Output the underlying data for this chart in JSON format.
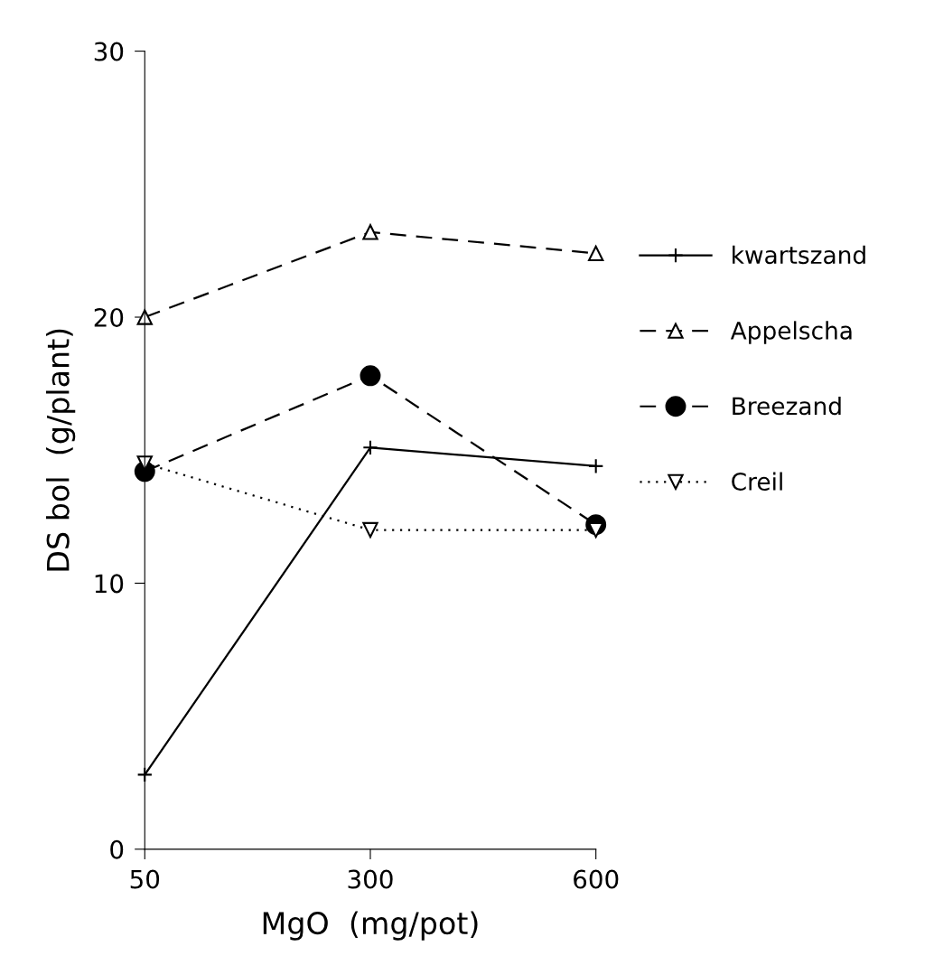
{
  "chart_data": {
    "type": "line",
    "xlabel": "MgO  (mg/pot)",
    "ylabel": "DS bol  (g/plant)",
    "categories": [
      "50",
      "300",
      "600"
    ],
    "series": [
      {
        "name": "kwartszand",
        "color": "#000000",
        "values": [
          2.8,
          15.1,
          14.4
        ],
        "marker": "cross",
        "line_style": "solid"
      },
      {
        "name": "Appelscha",
        "color": "#000000",
        "values": [
          20.0,
          23.2,
          22.4
        ],
        "marker": "triangle",
        "line_style": "dashed"
      },
      {
        "name": "Breezand",
        "color": "#000000",
        "values": [
          14.2,
          17.8,
          12.2
        ],
        "marker": "circle",
        "line_style": "dashed"
      },
      {
        "name": "Creil",
        "color": "#000000",
        "values": [
          14.5,
          12.0,
          12.0
        ],
        "marker": "triangle_down",
        "line_style": "dotted"
      }
    ],
    "ylim": [
      0,
      30
    ],
    "yticks": [
      0,
      10,
      20,
      30
    ],
    "grid": false,
    "legend": "right"
  }
}
